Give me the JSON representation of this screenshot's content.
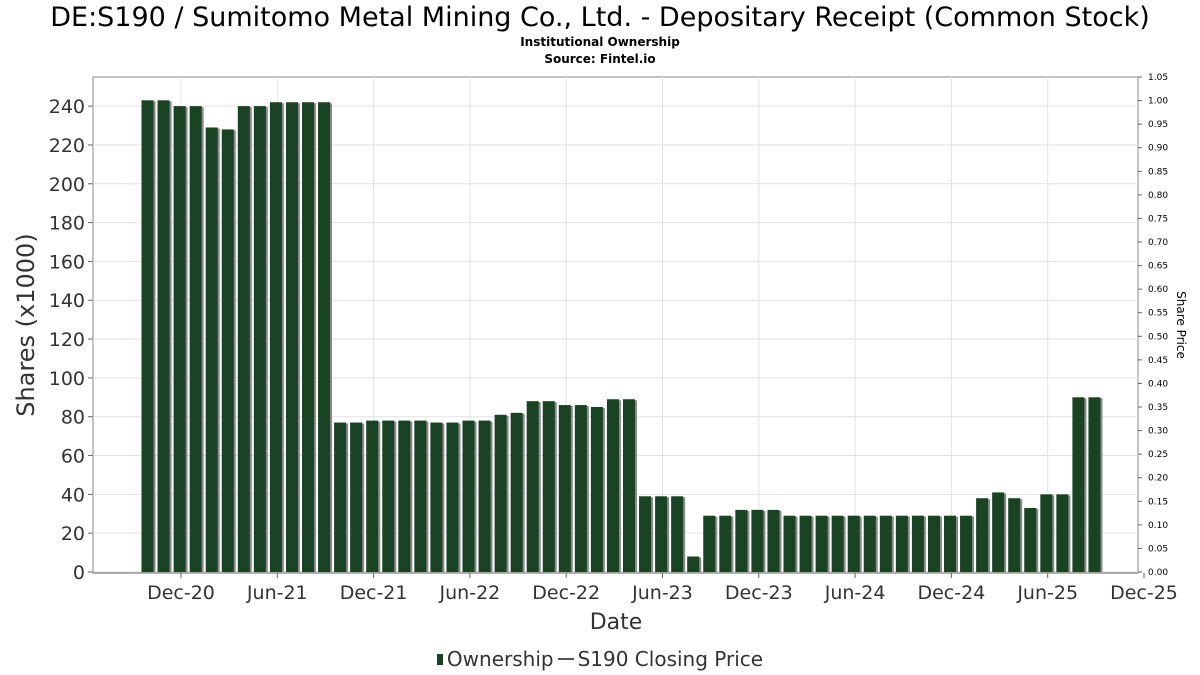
{
  "chart_data": {
    "type": "bar",
    "title": "DE:S190 / Sumitomo Metal Mining Co., Ltd. - Depositary Receipt (Common Stock)",
    "subtitle": "Institutional Ownership",
    "source": "Source: Fintel.io",
    "xlabel": "Date",
    "ylabel": "Shares (x1000)",
    "y2label": "Share Price",
    "ylim": [
      0,
      255
    ],
    "y2lim": [
      0,
      1.05
    ],
    "yticks": [
      "0",
      "20",
      "40",
      "60",
      "80",
      "100",
      "120",
      "140",
      "160",
      "180",
      "200",
      "220",
      "240"
    ],
    "y2ticks": [
      "0.00",
      "0.05",
      "0.10",
      "0.15",
      "0.20",
      "0.25",
      "0.30",
      "0.35",
      "0.40",
      "0.45",
      "0.50",
      "0.55",
      "0.60",
      "0.65",
      "0.70",
      "0.75",
      "0.80",
      "0.85",
      "0.90",
      "0.95",
      "1.00",
      "1.05"
    ],
    "xticks": [
      "Dec-20",
      "Jun-21",
      "Dec-21",
      "Jun-22",
      "Dec-22",
      "Jun-23",
      "Dec-23",
      "Jun-24",
      "Dec-24",
      "Jun-25",
      "Dec-25"
    ],
    "grid": true,
    "series": [
      {
        "name": "Ownership",
        "color": "#1a4323",
        "values": [
          243,
          243,
          240,
          240,
          229,
          228,
          240,
          240,
          242,
          242,
          242,
          242,
          77,
          77,
          78,
          78,
          78,
          78,
          77,
          77,
          78,
          78,
          81,
          82,
          88,
          88,
          86,
          86,
          85,
          89,
          89,
          39,
          39,
          39,
          8,
          29,
          29,
          32,
          32,
          32,
          29,
          29,
          29,
          29,
          29,
          29,
          29,
          29,
          29,
          29,
          29,
          29,
          38,
          41,
          38,
          33,
          40,
          40,
          90,
          90
        ]
      }
    ],
    "legend": {
      "position": "bottom",
      "items": [
        "Ownership",
        "S190 Closing Price"
      ]
    }
  }
}
